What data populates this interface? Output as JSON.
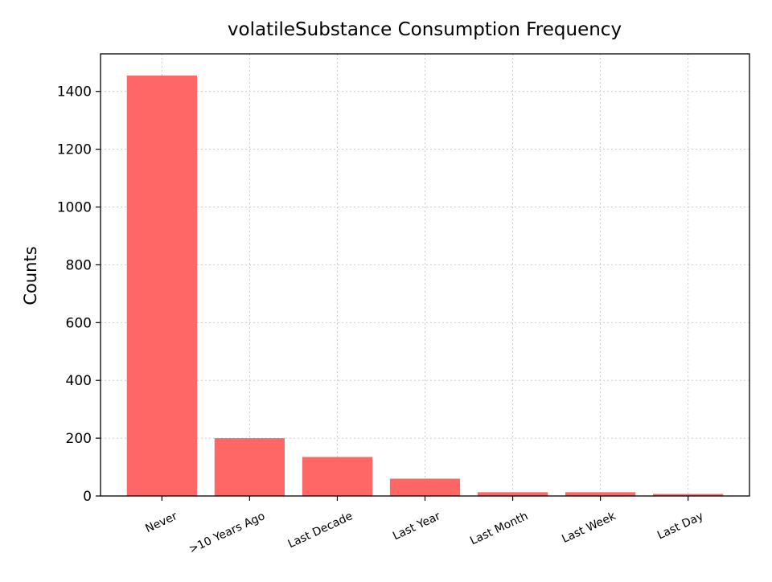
{
  "chart_data": {
    "type": "bar",
    "title": "volatileSubstance Consumption Frequency",
    "xlabel": "",
    "ylabel": "Counts",
    "categories": [
      "Never",
      ">10 Years Ago",
      "Last Decade",
      "Last Year",
      "Last Month",
      "Last Week",
      "Last Day"
    ],
    "values": [
      1455,
      200,
      135,
      60,
      13,
      13,
      7
    ],
    "ylim": [
      0,
      1530
    ],
    "yticks": [
      0,
      200,
      400,
      600,
      800,
      1000,
      1200,
      1400
    ],
    "grid": true,
    "bar_color": "#ff6666"
  }
}
